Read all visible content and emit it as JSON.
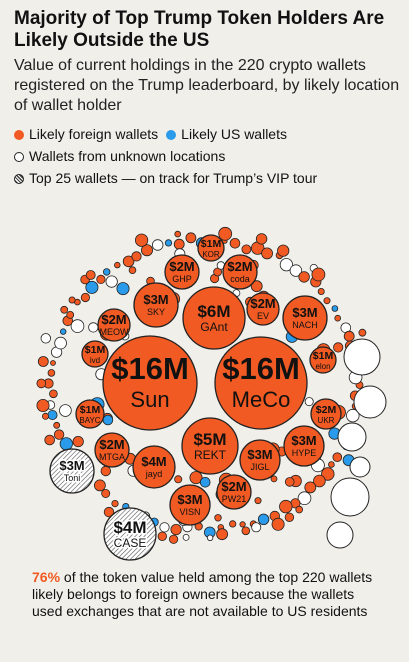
{
  "header": {
    "title": "Majority of Top Trump Token Holders Are Likely Outside the US",
    "subtitle": "Value of current holdings in the 220 crypto wallets registered on the Trump leaderboard, by likely location of wallet holder"
  },
  "legend": {
    "foreign": "Likely foreign wallets",
    "us": "Likely US wallets",
    "unknown": "Wallets from unknown locations",
    "vip": "Top 25 wallets — on track for Trump’s VIP tour"
  },
  "colors": {
    "foreign": "#f15a22",
    "us": "#2a9bea",
    "unknown": "#ffffff",
    "background": "#f1efea"
  },
  "chart_data": {
    "type": "bubble",
    "value_unit": "USD",
    "labeled_wallets": [
      {
        "name": "Sun",
        "value_label": "$16M",
        "value": 16,
        "location": "foreign"
      },
      {
        "name": "MeCo",
        "value_label": "$16M",
        "value": 16,
        "location": "foreign"
      },
      {
        "name": "GAnt",
        "value_label": "$6M",
        "value": 6,
        "location": "foreign"
      },
      {
        "name": "REKT",
        "value_label": "$5M",
        "value": 5,
        "location": "foreign"
      },
      {
        "name": "jayd",
        "value_label": "$4M",
        "value": 4,
        "location": "foreign"
      },
      {
        "name": "CASE",
        "value_label": "$4M",
        "value": 4,
        "location": "unknown"
      },
      {
        "name": "SKY",
        "value_label": "$3M",
        "value": 3,
        "location": "foreign"
      },
      {
        "name": "NACH",
        "value_label": "$3M",
        "value": 3,
        "location": "foreign"
      },
      {
        "name": "HYPE",
        "value_label": "$3M",
        "value": 3,
        "location": "foreign"
      },
      {
        "name": "JIGL",
        "value_label": "$3M",
        "value": 3,
        "location": "foreign"
      },
      {
        "name": "VISN",
        "value_label": "$3M",
        "value": 3,
        "location": "foreign"
      },
      {
        "name": "Toni",
        "value_label": "$3M",
        "value": 3,
        "location": "unknown"
      },
      {
        "name": "GHP",
        "value_label": "$2M",
        "value": 2,
        "location": "foreign"
      },
      {
        "name": "coda",
        "value_label": "$2M",
        "value": 2,
        "location": "foreign"
      },
      {
        "name": "EV",
        "value_label": "$2M",
        "value": 2,
        "location": "foreign"
      },
      {
        "name": "MEOW",
        "value_label": "$2M",
        "value": 2,
        "location": "foreign"
      },
      {
        "name": "MTGA",
        "value_label": "$2M",
        "value": 2,
        "location": "foreign"
      },
      {
        "name": "UKR",
        "value_label": "$2M",
        "value": 2,
        "location": "foreign"
      },
      {
        "name": "PW21",
        "value_label": "$2M",
        "value": 2,
        "location": "foreign"
      },
      {
        "name": "KOR",
        "value_label": "$1M",
        "value": 1,
        "location": "foreign"
      },
      {
        "name": "ivd",
        "value_label": "$1M",
        "value": 1,
        "location": "foreign"
      },
      {
        "name": "elon",
        "value_label": "$1M",
        "value": 1,
        "location": "foreign"
      },
      {
        "name": "BAYC",
        "value_label": "$1M",
        "value": 1,
        "location": "foreign"
      }
    ],
    "total_wallets": 220
  },
  "footnote": {
    "pct": "76%",
    "text": " of the token value held among the top 220 wallets likely belongs to foreign owners because the wallets used exchanges that are not available to US residents"
  }
}
